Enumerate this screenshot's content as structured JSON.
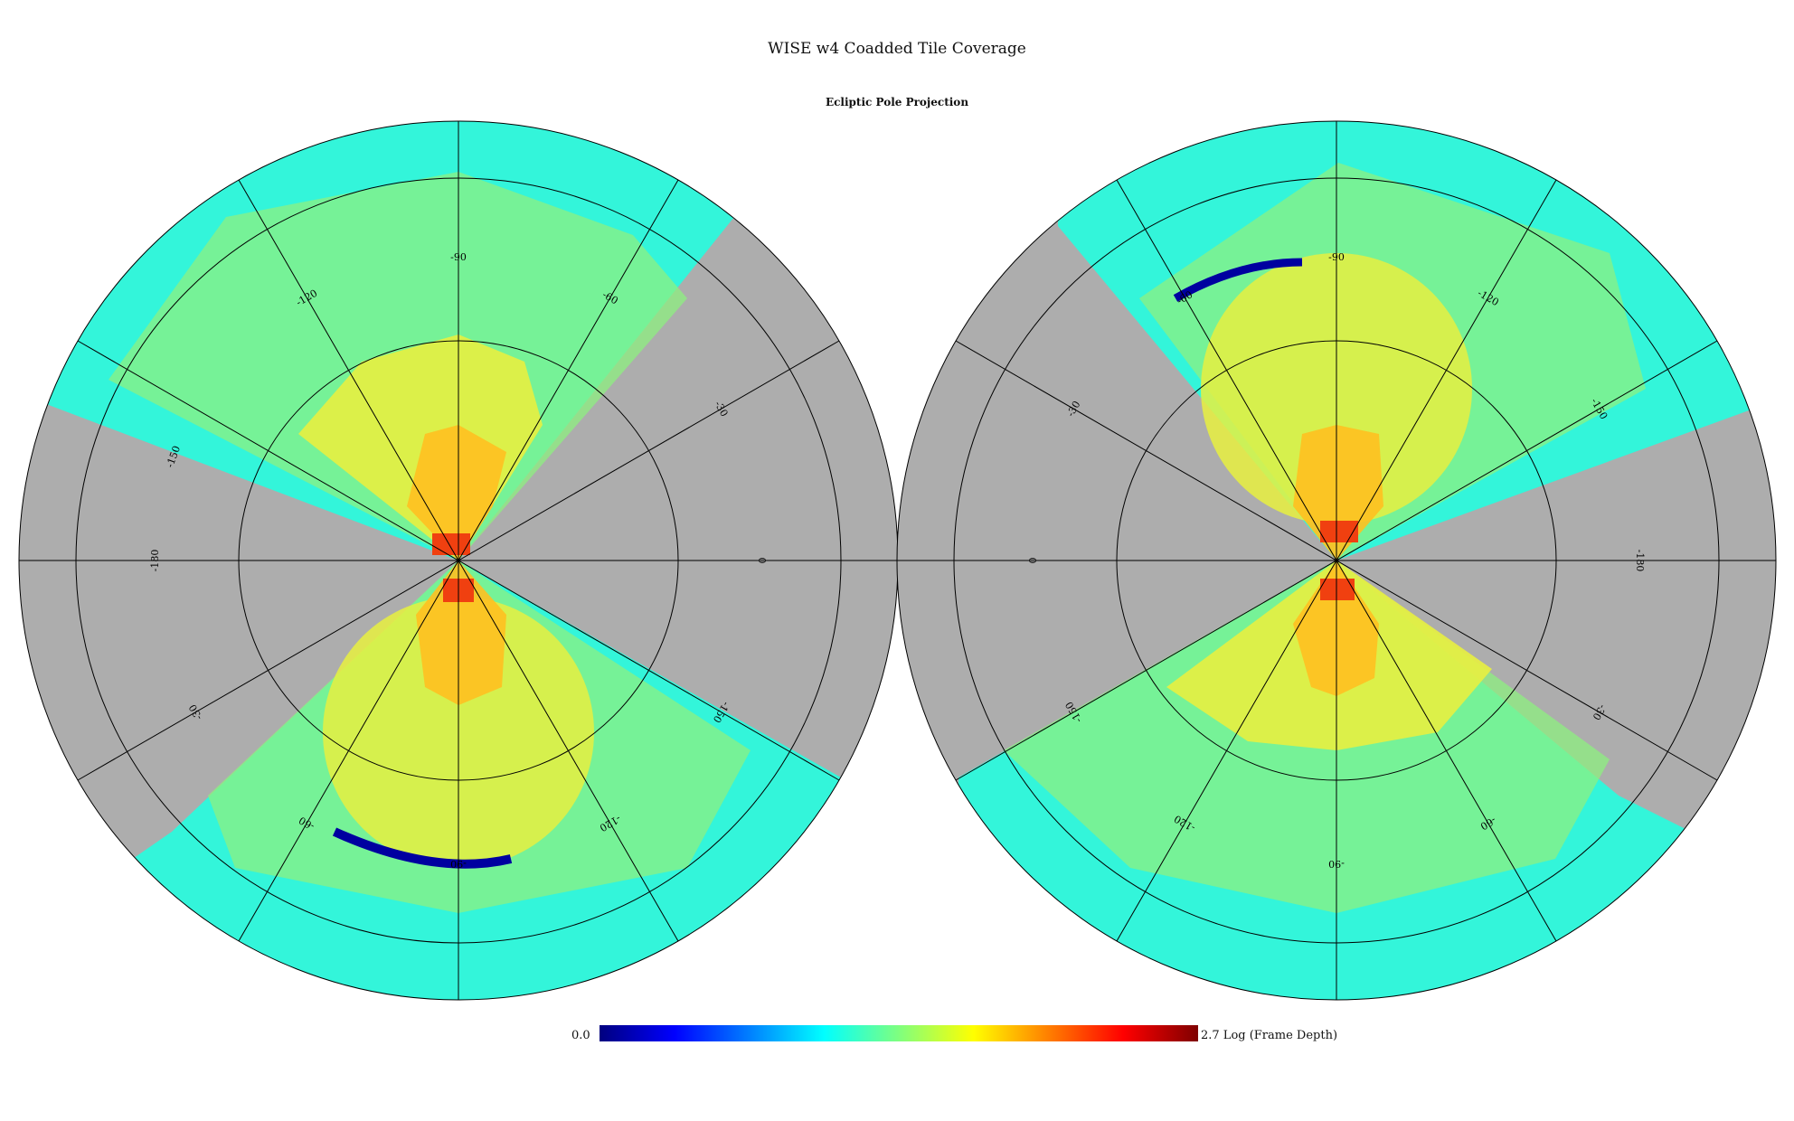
{
  "title": "WISE w4 Coadded Tile Coverage",
  "subtitle": "Ecliptic Pole Projection",
  "colorbar": {
    "min_label": "0.0",
    "max_label": "2.7 Log (Frame Depth)",
    "range": [
      0.0,
      2.7
    ],
    "colormap": "jet",
    "stops": [
      "#00007f",
      "#0000ff",
      "#007fff",
      "#00ffff",
      "#7fff7f",
      "#ffff00",
      "#ff7f00",
      "#ff0000",
      "#7f0000"
    ]
  },
  "no_coverage_color": "#adadad",
  "hemispheres": [
    {
      "name": "left-hemisphere",
      "grid_labels": [
        "-180",
        "-150",
        "-120",
        "-90",
        "-60",
        "-30",
        "0",
        "-30",
        "-60",
        "-90",
        "-120",
        "-150"
      ],
      "grid_label_angles": [
        180,
        160,
        120,
        90,
        60,
        30,
        0,
        210,
        240,
        270,
        300,
        330
      ]
    },
    {
      "name": "right-hemisphere",
      "grid_labels": [
        "0",
        "-30",
        "-60",
        "-90",
        "-120",
        "-150",
        "-180",
        "-30",
        "-60",
        "-90",
        "-120",
        "-150"
      ],
      "grid_label_angles": [
        180,
        150,
        120,
        90,
        60,
        30,
        0,
        330,
        300,
        270,
        240,
        210
      ]
    }
  ]
}
